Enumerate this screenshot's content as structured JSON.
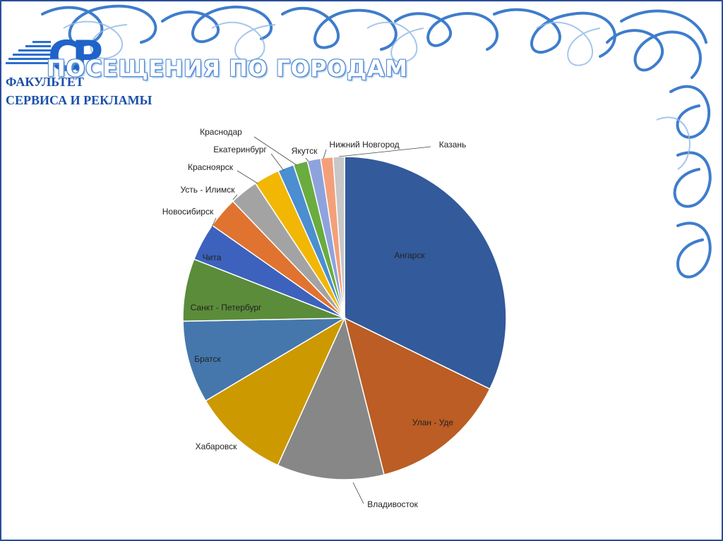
{
  "slide": {
    "title": "ПОСЕЩЕНИЯ ПО ГОРОДАМ",
    "logo": {
      "mark": "СР",
      "line1": "ФАКУЛЬТЕТ",
      "line2": "СЕРВИСА И РЕКЛАМЫ"
    },
    "accent_color": "#1f63c9",
    "frame_color": "#2a4e9b"
  },
  "chart_data": {
    "type": "pie",
    "title": "",
    "start_angle_deg": 0,
    "direction": "clockwise",
    "slices": [
      {
        "label": "Ангарск",
        "value": 34.0,
        "color": "#335a9a",
        "label_inside": true
      },
      {
        "label": "Улан - Уде",
        "value": 14.6,
        "color": "#bb5d24",
        "label_inside": true
      },
      {
        "label": "Владивосток",
        "value": 11.3,
        "color": "#878787",
        "label_inside": false
      },
      {
        "label": "Хабаровск",
        "value": 10.2,
        "color": "#cc9900",
        "label_inside": true
      },
      {
        "label": "Братск",
        "value": 8.7,
        "color": "#4577ad",
        "label_inside": true
      },
      {
        "label": "Санкт - Петербург",
        "value": 6.6,
        "color": "#5b8c3a",
        "label_inside": true
      },
      {
        "label": "Чита",
        "value": 4.0,
        "color": "#3c62bd",
        "label_inside": true
      },
      {
        "label": "Новосибирск",
        "value": 3.3,
        "color": "#e07330",
        "label_inside": false
      },
      {
        "label": "Усть - Илимск",
        "value": 3.0,
        "color": "#a3a3a3",
        "label_inside": false
      },
      {
        "label": "Красноярск",
        "value": 2.7,
        "color": "#f2b705",
        "label_inside": false
      },
      {
        "label": "Екатеринбург",
        "value": 1.7,
        "color": "#4b8ed1",
        "label_inside": false
      },
      {
        "label": "Краснодар",
        "value": 1.5,
        "color": "#6aac40",
        "label_inside": false
      },
      {
        "label": "Якутск",
        "value": 1.4,
        "color": "#8ea3dd",
        "label_inside": false
      },
      {
        "label": "Нижний Новгород",
        "value": 1.3,
        "color": "#f3a07a",
        "label_inside": false
      },
      {
        "label": "Казань",
        "value": 1.2,
        "color": "#c7c7c7",
        "label_inside": false
      }
    ]
  }
}
